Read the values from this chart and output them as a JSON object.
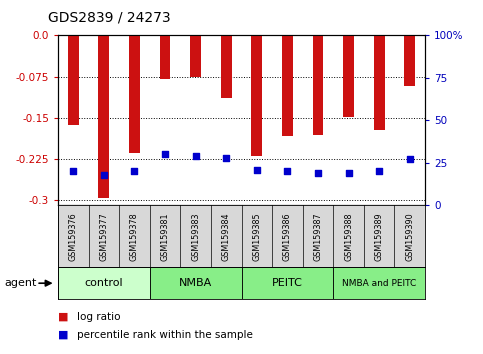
{
  "title": "GDS2839 / 24273",
  "samples": [
    "GSM159376",
    "GSM159377",
    "GSM159378",
    "GSM159381",
    "GSM159383",
    "GSM159384",
    "GSM159385",
    "GSM159386",
    "GSM159387",
    "GSM159388",
    "GSM159389",
    "GSM159390"
  ],
  "log_ratio": [
    -0.163,
    -0.296,
    -0.215,
    -0.079,
    -0.076,
    -0.115,
    -0.22,
    -0.183,
    -0.182,
    -0.148,
    -0.172,
    -0.092
  ],
  "percentile_rank": [
    20,
    18,
    20,
    30,
    29,
    28,
    21,
    20,
    19,
    19,
    20,
    27
  ],
  "ylim_left": [
    -0.31,
    0.0
  ],
  "ylim_right": [
    0,
    100
  ],
  "yticks_left": [
    0.0,
    -0.075,
    -0.15,
    -0.225,
    -0.3
  ],
  "yticks_right": [
    0,
    25,
    50,
    75,
    100
  ],
  "left_tick_color": "#cc0000",
  "right_tick_color": "#0000bb",
  "bar_color": "#cc1111",
  "percentile_color": "#0000cc",
  "plot_bg": "#ffffff",
  "group_labels": [
    "control",
    "NMBA",
    "PEITC",
    "NMBA and PEITC"
  ],
  "group_colors": [
    "#ccffcc",
    "#88ee88",
    "#88ee88",
    "#88ee88"
  ],
  "group_boundaries": [
    0,
    3,
    6,
    9,
    12
  ],
  "legend_red_label": "log ratio",
  "legend_blue_label": "percentile rank within the sample",
  "bar_width": 0.35
}
